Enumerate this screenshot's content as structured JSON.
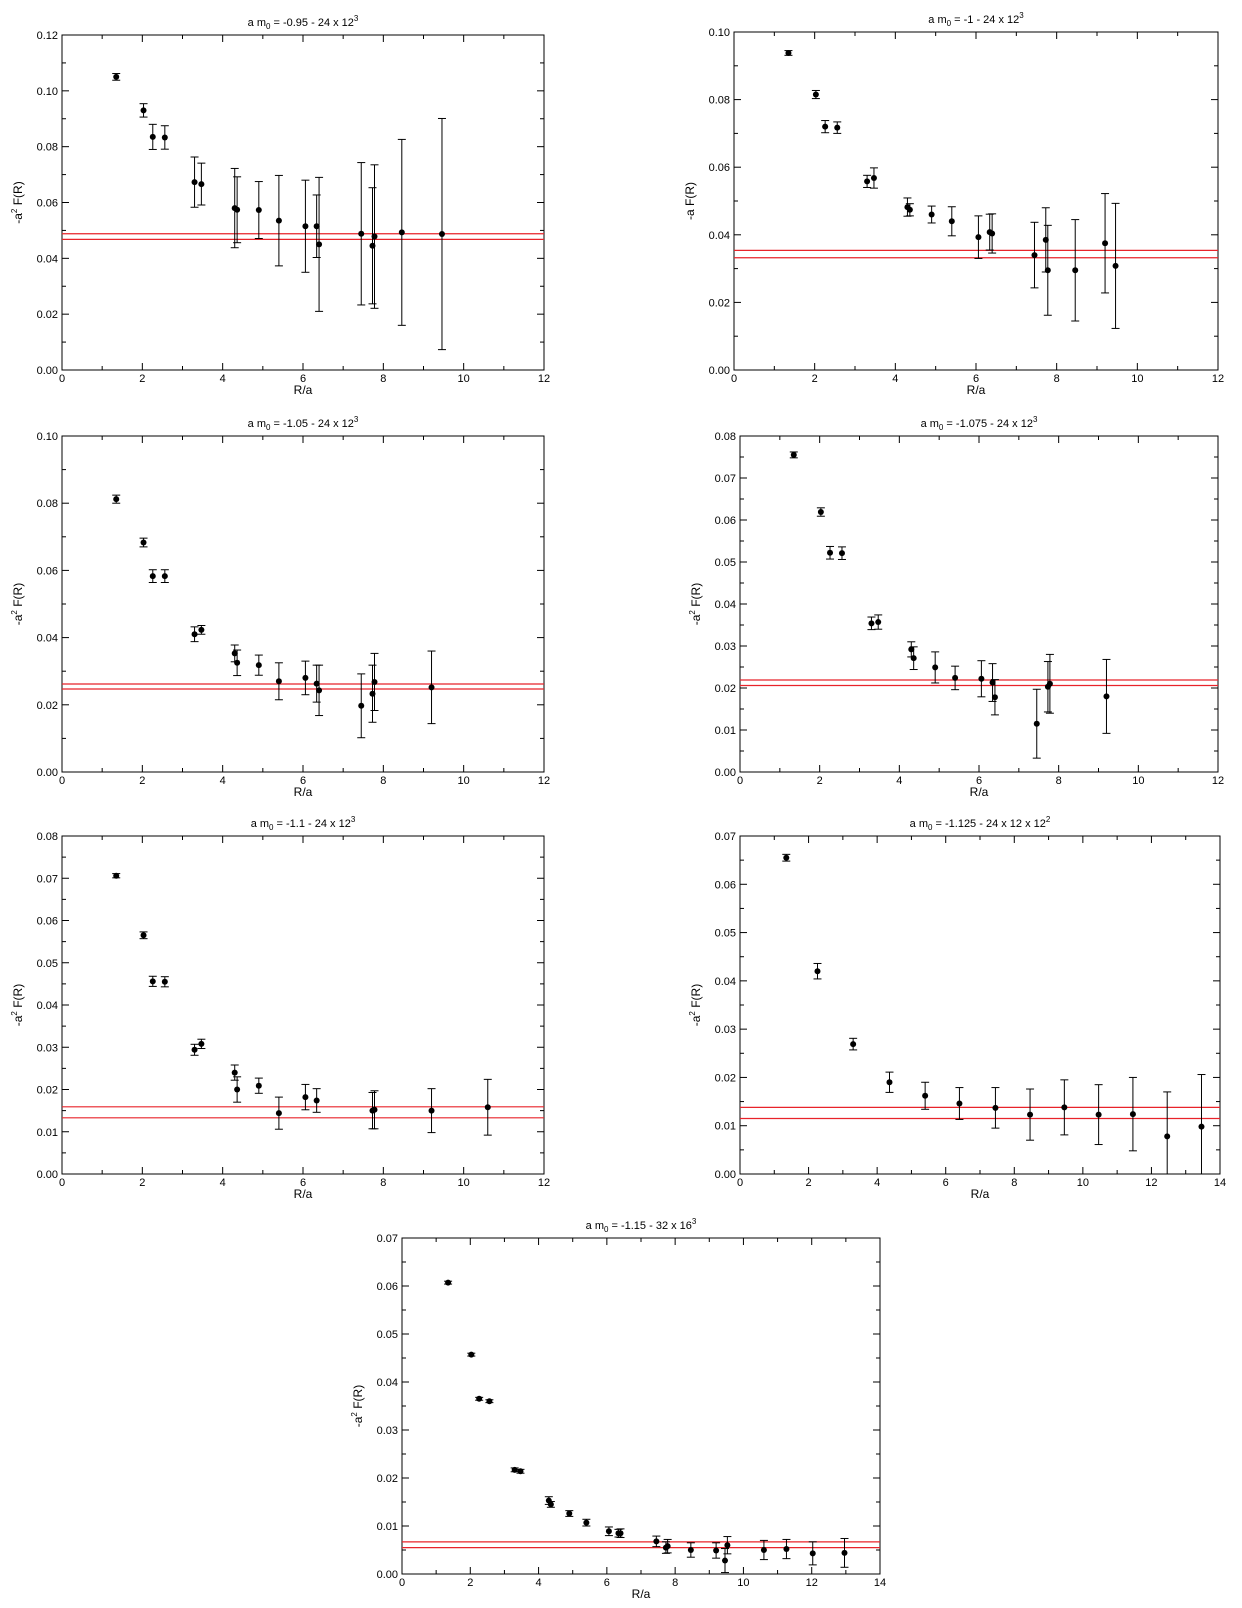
{
  "style": {
    "point_color": "#000000",
    "band_color": "#e8232a",
    "frame_color": "#000000"
  },
  "chart_data": [
    {
      "type": "scatter",
      "title": {
        "prefix": "a m",
        "sub": "0",
        "mid": " = -0.95  -  24 x 12",
        "sup": "3",
        "tail": ""
      },
      "xlabel": "R/a",
      "ylabel": {
        "pre": "-a",
        "sup": "2",
        "post": " F(R)"
      },
      "xlim": [
        0,
        12
      ],
      "ylim": [
        0,
        0.12
      ],
      "xticks": [
        "0",
        "2",
        "4",
        "6",
        "8",
        "10",
        "12"
      ],
      "yticks": [
        "0.00",
        "0.02",
        "0.04",
        "0.06",
        "0.08",
        "0.10",
        "0.12"
      ],
      "band": [
        0.0468,
        0.0488
      ],
      "points": [
        {
          "x": 1.35,
          "y": 0.105,
          "e": 0.0012
        },
        {
          "x": 2.03,
          "y": 0.093,
          "e": 0.0024
        },
        {
          "x": 2.26,
          "y": 0.0835,
          "e": 0.0045
        },
        {
          "x": 2.56,
          "y": 0.0833,
          "e": 0.0042
        },
        {
          "x": 3.3,
          "y": 0.0673,
          "e": 0.009
        },
        {
          "x": 3.47,
          "y": 0.0666,
          "e": 0.0075
        },
        {
          "x": 4.3,
          "y": 0.058,
          "e": 0.0142
        },
        {
          "x": 4.36,
          "y": 0.0574,
          "e": 0.0118
        },
        {
          "x": 4.9,
          "y": 0.0573,
          "e": 0.0102
        },
        {
          "x": 5.4,
          "y": 0.0535,
          "e": 0.0162
        },
        {
          "x": 6.06,
          "y": 0.0515,
          "e": 0.0165
        },
        {
          "x": 6.34,
          "y": 0.0515,
          "e": 0.0112
        },
        {
          "x": 6.4,
          "y": 0.045,
          "e": 0.024
        },
        {
          "x": 7.45,
          "y": 0.0488,
          "e": 0.0255
        },
        {
          "x": 7.73,
          "y": 0.0445,
          "e": 0.0208
        },
        {
          "x": 7.78,
          "y": 0.0478,
          "e": 0.0257
        },
        {
          "x": 8.46,
          "y": 0.0493,
          "e": 0.0333
        },
        {
          "x": 9.46,
          "y": 0.0487,
          "e": 0.0414
        }
      ]
    },
    {
      "type": "scatter",
      "title": {
        "prefix": "a m",
        "sub": "0",
        "mid": " = -1  -  24 x 12",
        "sup": "3",
        "tail": ""
      },
      "xlabel": "R/a",
      "ylabel": {
        "pre": "-a F(R)",
        "sup": "",
        "post": ""
      },
      "xlim": [
        0,
        12
      ],
      "ylim": [
        0,
        0.1
      ],
      "xticks": [
        "0",
        "2",
        "4",
        "6",
        "8",
        "10",
        "12"
      ],
      "yticks": [
        "0.00",
        "0.02",
        "0.04",
        "0.06",
        "0.08",
        "0.10"
      ],
      "band": [
        0.0332,
        0.0354
      ],
      "points": [
        {
          "x": 1.35,
          "y": 0.0938,
          "e": 0.0007
        },
        {
          "x": 2.03,
          "y": 0.0815,
          "e": 0.0012
        },
        {
          "x": 2.26,
          "y": 0.072,
          "e": 0.0018
        },
        {
          "x": 2.56,
          "y": 0.0717,
          "e": 0.0017
        },
        {
          "x": 3.3,
          "y": 0.0558,
          "e": 0.0018
        },
        {
          "x": 3.47,
          "y": 0.0568,
          "e": 0.003
        },
        {
          "x": 4.3,
          "y": 0.0482,
          "e": 0.0027
        },
        {
          "x": 4.36,
          "y": 0.0474,
          "e": 0.0018
        },
        {
          "x": 4.9,
          "y": 0.046,
          "e": 0.0025
        },
        {
          "x": 5.4,
          "y": 0.044,
          "e": 0.0043
        },
        {
          "x": 6.06,
          "y": 0.0393,
          "e": 0.0063
        },
        {
          "x": 6.34,
          "y": 0.0408,
          "e": 0.0053
        },
        {
          "x": 6.4,
          "y": 0.0404,
          "e": 0.0058
        },
        {
          "x": 7.45,
          "y": 0.034,
          "e": 0.0097
        },
        {
          "x": 7.73,
          "y": 0.0385,
          "e": 0.0095
        },
        {
          "x": 7.78,
          "y": 0.0295,
          "e": 0.0133
        },
        {
          "x": 8.46,
          "y": 0.0295,
          "e": 0.015
        },
        {
          "x": 9.2,
          "y": 0.0375,
          "e": 0.0147
        },
        {
          "x": 9.46,
          "y": 0.0308,
          "e": 0.0185
        }
      ]
    },
    {
      "type": "scatter",
      "title": {
        "prefix": "a m",
        "sub": "0",
        "mid": " = -1.05  -  24 x 12",
        "sup": "3",
        "tail": ""
      },
      "xlabel": "R/a",
      "ylabel": {
        "pre": "-a",
        "sup": "2",
        "post": " F(R)"
      },
      "xlim": [
        0,
        12
      ],
      "ylim": [
        0,
        0.1
      ],
      "xticks": [
        "0",
        "2",
        "4",
        "6",
        "8",
        "10",
        "12"
      ],
      "yticks": [
        "0.00",
        "0.02",
        "0.04",
        "0.06",
        "0.08",
        "0.10"
      ],
      "band": [
        0.0247,
        0.0262
      ],
      "points": [
        {
          "x": 1.35,
          "y": 0.0812,
          "e": 0.0012
        },
        {
          "x": 2.03,
          "y": 0.0683,
          "e": 0.0013
        },
        {
          "x": 2.26,
          "y": 0.0583,
          "e": 0.0019
        },
        {
          "x": 2.56,
          "y": 0.0583,
          "e": 0.0019
        },
        {
          "x": 3.3,
          "y": 0.041,
          "e": 0.0022
        },
        {
          "x": 3.47,
          "y": 0.0423,
          "e": 0.0013
        },
        {
          "x": 4.3,
          "y": 0.0353,
          "e": 0.0025
        },
        {
          "x": 4.36,
          "y": 0.0325,
          "e": 0.0038
        },
        {
          "x": 4.9,
          "y": 0.0318,
          "e": 0.003
        },
        {
          "x": 5.4,
          "y": 0.027,
          "e": 0.0055
        },
        {
          "x": 6.06,
          "y": 0.028,
          "e": 0.005
        },
        {
          "x": 6.34,
          "y": 0.0263,
          "e": 0.0055
        },
        {
          "x": 6.4,
          "y": 0.0243,
          "e": 0.0075
        },
        {
          "x": 7.45,
          "y": 0.0197,
          "e": 0.0095
        },
        {
          "x": 7.73,
          "y": 0.0233,
          "e": 0.0085
        },
        {
          "x": 7.78,
          "y": 0.0268,
          "e": 0.0085
        },
        {
          "x": 9.2,
          "y": 0.0252,
          "e": 0.0108
        }
      ]
    },
    {
      "type": "scatter",
      "title": {
        "prefix": "a m",
        "sub": "0",
        "mid": " = -1.075  -  24 x 12",
        "sup": "3",
        "tail": ""
      },
      "xlabel": "R/a",
      "ylabel": {
        "pre": "-a",
        "sup": "2",
        "post": " F(R)"
      },
      "xlim": [
        0,
        12
      ],
      "ylim": [
        0,
        0.08
      ],
      "xticks": [
        "0",
        "2",
        "4",
        "6",
        "8",
        "10",
        "12"
      ],
      "yticks": [
        "0.00",
        "0.01",
        "0.02",
        "0.03",
        "0.04",
        "0.05",
        "0.06",
        "0.07",
        "0.08"
      ],
      "band": [
        0.0206,
        0.0219
      ],
      "points": [
        {
          "x": 1.35,
          "y": 0.0755,
          "e": 0.0007
        },
        {
          "x": 2.03,
          "y": 0.0619,
          "e": 0.001
        },
        {
          "x": 2.26,
          "y": 0.0522,
          "e": 0.0015
        },
        {
          "x": 2.56,
          "y": 0.0521,
          "e": 0.0015
        },
        {
          "x": 3.3,
          "y": 0.0354,
          "e": 0.0015
        },
        {
          "x": 3.47,
          "y": 0.0357,
          "e": 0.0017
        },
        {
          "x": 4.3,
          "y": 0.0292,
          "e": 0.0018
        },
        {
          "x": 4.36,
          "y": 0.0271,
          "e": 0.0027
        },
        {
          "x": 4.9,
          "y": 0.0249,
          "e": 0.0037
        },
        {
          "x": 5.4,
          "y": 0.0224,
          "e": 0.0028
        },
        {
          "x": 6.06,
          "y": 0.0222,
          "e": 0.0043
        },
        {
          "x": 6.34,
          "y": 0.0213,
          "e": 0.0045
        },
        {
          "x": 6.4,
          "y": 0.0178,
          "e": 0.0042
        },
        {
          "x": 7.45,
          "y": 0.0115,
          "e": 0.0082
        },
        {
          "x": 7.73,
          "y": 0.0203,
          "e": 0.006
        },
        {
          "x": 7.78,
          "y": 0.021,
          "e": 0.007
        },
        {
          "x": 9.2,
          "y": 0.018,
          "e": 0.0088
        }
      ]
    },
    {
      "type": "scatter",
      "title": {
        "prefix": "a m",
        "sub": "0",
        "mid": " = -1.1  -  24 x 12",
        "sup": "3",
        "tail": ""
      },
      "xlabel": "R/a",
      "ylabel": {
        "pre": "-a",
        "sup": "2",
        "post": " F(R)"
      },
      "xlim": [
        0,
        12
      ],
      "ylim": [
        0,
        0.08
      ],
      "xticks": [
        "0",
        "2",
        "4",
        "6",
        "8",
        "10",
        "12"
      ],
      "yticks": [
        "0.00",
        "0.01",
        "0.02",
        "0.03",
        "0.04",
        "0.05",
        "0.06",
        "0.07",
        "0.08"
      ],
      "band": [
        0.0133,
        0.0159
      ],
      "points": [
        {
          "x": 1.35,
          "y": 0.0706,
          "e": 0.0005
        },
        {
          "x": 2.03,
          "y": 0.0565,
          "e": 0.0008
        },
        {
          "x": 2.26,
          "y": 0.0456,
          "e": 0.0012
        },
        {
          "x": 2.56,
          "y": 0.0455,
          "e": 0.0012
        },
        {
          "x": 3.3,
          "y": 0.0294,
          "e": 0.0013
        },
        {
          "x": 3.47,
          "y": 0.0308,
          "e": 0.0011
        },
        {
          "x": 4.3,
          "y": 0.024,
          "e": 0.0018
        },
        {
          "x": 4.36,
          "y": 0.02,
          "e": 0.003
        },
        {
          "x": 4.9,
          "y": 0.0209,
          "e": 0.0018
        },
        {
          "x": 5.4,
          "y": 0.0144,
          "e": 0.0038
        },
        {
          "x": 6.06,
          "y": 0.0182,
          "e": 0.003
        },
        {
          "x": 6.34,
          "y": 0.0174,
          "e": 0.0028
        },
        {
          "x": 7.73,
          "y": 0.015,
          "e": 0.0043
        },
        {
          "x": 7.78,
          "y": 0.0152,
          "e": 0.0045
        },
        {
          "x": 9.2,
          "y": 0.015,
          "e": 0.0052
        },
        {
          "x": 10.6,
          "y": 0.0158,
          "e": 0.0066
        }
      ]
    },
    {
      "type": "scatter",
      "title": {
        "prefix": "a m",
        "sub": "0",
        "mid": " = -1.125  -  24 x 12 x 12",
        "sup": "2",
        "tail": ""
      },
      "xlabel": "R/a",
      "ylabel": {
        "pre": "-a",
        "sup": "2",
        "post": " F(R)"
      },
      "xlim": [
        0,
        14
      ],
      "ylim": [
        0,
        0.07
      ],
      "xticks": [
        "0",
        "2",
        "4",
        "6",
        "8",
        "10",
        "12",
        "14"
      ],
      "yticks": [
        "0.00",
        "0.01",
        "0.02",
        "0.03",
        "0.04",
        "0.05",
        "0.06",
        "0.07"
      ],
      "band": [
        0.0115,
        0.0138
      ],
      "points": [
        {
          "x": 1.35,
          "y": 0.0655,
          "e": 0.0007
        },
        {
          "x": 2.26,
          "y": 0.042,
          "e": 0.0016
        },
        {
          "x": 3.3,
          "y": 0.0269,
          "e": 0.0012
        },
        {
          "x": 4.36,
          "y": 0.019,
          "e": 0.0021
        },
        {
          "x": 5.4,
          "y": 0.0162,
          "e": 0.0028
        },
        {
          "x": 6.4,
          "y": 0.0146,
          "e": 0.0033
        },
        {
          "x": 7.45,
          "y": 0.0137,
          "e": 0.0042
        },
        {
          "x": 8.46,
          "y": 0.0123,
          "e": 0.0053
        },
        {
          "x": 9.46,
          "y": 0.0138,
          "e": 0.0057
        },
        {
          "x": 10.46,
          "y": 0.0123,
          "e": 0.0062
        },
        {
          "x": 11.46,
          "y": 0.0124,
          "e": 0.0076
        },
        {
          "x": 12.46,
          "y": 0.0078,
          "e": 0.0092
        },
        {
          "x": 13.46,
          "y": 0.0098,
          "e": 0.0108
        }
      ]
    },
    {
      "type": "scatter",
      "title": {
        "prefix": "a m",
        "sub": "0",
        "mid": " = -1.15  -  32 x 16",
        "sup": "3",
        "tail": ""
      },
      "xlabel": "R/a",
      "ylabel": {
        "pre": "-a",
        "sup": "2",
        "post": " F(R)"
      },
      "xlim": [
        0,
        14
      ],
      "ylim": [
        0,
        0.07
      ],
      "xticks": [
        "0",
        "2",
        "4",
        "6",
        "8",
        "10",
        "12",
        "14"
      ],
      "yticks": [
        "0.00",
        "0.01",
        "0.02",
        "0.03",
        "0.04",
        "0.05",
        "0.06",
        "0.07"
      ],
      "band": [
        0.0055,
        0.0067
      ],
      "points": [
        {
          "x": 1.35,
          "y": 0.0607,
          "e": 0.0003
        },
        {
          "x": 2.03,
          "y": 0.0457,
          "e": 0.0003
        },
        {
          "x": 2.26,
          "y": 0.0365,
          "e": 0.0003
        },
        {
          "x": 2.56,
          "y": 0.036,
          "e": 0.0003
        },
        {
          "x": 3.3,
          "y": 0.0217,
          "e": 0.0004
        },
        {
          "x": 3.47,
          "y": 0.0214,
          "e": 0.0004
        },
        {
          "x": 4.3,
          "y": 0.0153,
          "e": 0.0008
        },
        {
          "x": 4.36,
          "y": 0.0145,
          "e": 0.0006
        },
        {
          "x": 4.9,
          "y": 0.0126,
          "e": 0.0006
        },
        {
          "x": 5.4,
          "y": 0.0107,
          "e": 0.0007
        },
        {
          "x": 6.06,
          "y": 0.0089,
          "e": 0.0009
        },
        {
          "x": 6.34,
          "y": 0.0085,
          "e": 0.0008
        },
        {
          "x": 6.4,
          "y": 0.0085,
          "e": 0.0009
        },
        {
          "x": 7.45,
          "y": 0.0068,
          "e": 0.0011
        },
        {
          "x": 7.73,
          "y": 0.0055,
          "e": 0.0012
        },
        {
          "x": 7.78,
          "y": 0.0058,
          "e": 0.0014
        },
        {
          "x": 8.46,
          "y": 0.005,
          "e": 0.0015
        },
        {
          "x": 9.2,
          "y": 0.0049,
          "e": 0.0016
        },
        {
          "x": 9.46,
          "y": 0.0028,
          "e": 0.0025
        },
        {
          "x": 9.53,
          "y": 0.006,
          "e": 0.0018
        },
        {
          "x": 10.6,
          "y": 0.005,
          "e": 0.002
        },
        {
          "x": 11.26,
          "y": 0.0052,
          "e": 0.002
        },
        {
          "x": 12.03,
          "y": 0.0043,
          "e": 0.0024
        },
        {
          "x": 12.96,
          "y": 0.0044,
          "e": 0.003
        }
      ]
    }
  ]
}
